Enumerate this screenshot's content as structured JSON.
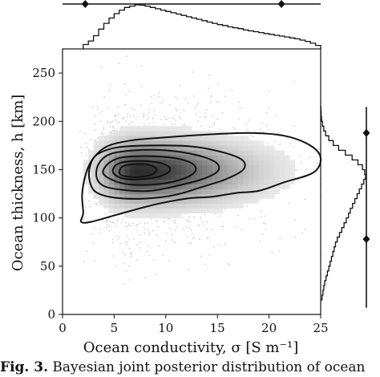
{
  "chart_data": {
    "type": "scatter",
    "subtype": "joint-distribution with 2D density, contours and marginal histograms",
    "xlabel": "Ocean conductivity, σ [S m⁻¹]",
    "ylabel": "Ocean thickness, h [km]",
    "xlim": [
      0,
      25
    ],
    "ylim": [
      0,
      275
    ],
    "xticks": [
      "0",
      "5",
      "10",
      "15",
      "20",
      "25"
    ],
    "yticks": [
      "0",
      "50",
      "100",
      "150",
      "200",
      "250"
    ],
    "grid": false,
    "density_peak": {
      "sigma": 7,
      "h": 148
    },
    "contours": [
      {
        "level": 1,
        "points": [
          [
            2.0,
            105
          ],
          [
            1.9,
            125
          ],
          [
            2.3,
            147
          ],
          [
            3.0,
            162
          ],
          [
            4.3,
            174
          ],
          [
            6.5,
            180
          ],
          [
            9.5,
            183
          ],
          [
            13.5,
            186
          ],
          [
            18.0,
            188
          ],
          [
            21.5,
            185
          ],
          [
            24.0,
            175
          ],
          [
            25.0,
            162
          ],
          [
            24.3,
            147
          ],
          [
            21.5,
            137
          ],
          [
            19.0,
            128
          ],
          [
            17.0,
            126
          ],
          [
            14.5,
            122
          ],
          [
            12.0,
            120
          ],
          [
            9.0,
            114
          ],
          [
            5.5,
            104
          ],
          [
            2.8,
            96
          ],
          [
            1.8,
            96
          ]
        ]
      },
      {
        "level": 2,
        "points": [
          [
            2.6,
            140
          ],
          [
            2.7,
            155
          ],
          [
            3.4,
            166
          ],
          [
            5.3,
            173
          ],
          [
            8.5,
            175
          ],
          [
            12.5,
            174
          ],
          [
            15.5,
            168
          ],
          [
            17.4,
            160
          ],
          [
            17.5,
            150
          ],
          [
            15.8,
            140
          ],
          [
            13.5,
            132
          ],
          [
            11.0,
            124
          ],
          [
            8.0,
            120
          ],
          [
            5.0,
            121
          ],
          [
            3.2,
            127
          ]
        ]
      },
      {
        "level": 3,
        "points": [
          [
            3.3,
            142
          ],
          [
            3.5,
            156
          ],
          [
            4.6,
            166
          ],
          [
            7.0,
            170
          ],
          [
            10.0,
            170
          ],
          [
            13.0,
            165
          ],
          [
            14.9,
            157
          ],
          [
            15.0,
            148
          ],
          [
            13.5,
            140
          ],
          [
            11.0,
            133
          ],
          [
            8.5,
            128
          ],
          [
            5.8,
            129
          ],
          [
            4.0,
            133
          ]
        ]
      },
      {
        "level": 4,
        "points": [
          [
            4.0,
            145
          ],
          [
            4.3,
            155
          ],
          [
            5.5,
            162
          ],
          [
            7.5,
            164
          ],
          [
            10.0,
            163
          ],
          [
            12.0,
            159
          ],
          [
            12.9,
            152
          ],
          [
            12.4,
            144
          ],
          [
            10.5,
            137
          ],
          [
            8.0,
            134
          ],
          [
            5.7,
            136
          ]
        ]
      },
      {
        "level": 5,
        "points": [
          [
            4.9,
            147
          ],
          [
            5.2,
            155
          ],
          [
            6.4,
            158.5
          ],
          [
            8.5,
            158.5
          ],
          [
            10.0,
            155
          ],
          [
            10.4,
            149
          ],
          [
            9.4,
            143
          ],
          [
            7.5,
            140
          ],
          [
            5.8,
            141
          ]
        ]
      },
      {
        "level": 6,
        "points": [
          [
            5.5,
            147
          ],
          [
            5.8,
            153
          ],
          [
            6.8,
            155.5
          ],
          [
            8.3,
            155
          ],
          [
            9.1,
            150.5
          ],
          [
            8.6,
            144.5
          ],
          [
            7.2,
            142.5
          ],
          [
            5.9,
            143.5
          ]
        ]
      }
    ],
    "marginal_x": {
      "bin_edges": [
        2.0,
        2.5,
        3.0,
        3.5,
        4.0,
        4.5,
        5.0,
        5.5,
        6.0,
        6.5,
        7.0,
        7.5,
        8.0,
        8.5,
        9.0,
        9.5,
        10.0,
        10.5,
        11.0,
        11.5,
        12.0,
        12.5,
        13.0,
        13.5,
        14.0,
        14.5,
        15.0,
        15.5,
        16.0,
        16.5,
        17.0,
        17.5,
        18.0,
        18.5,
        19.0,
        19.5,
        20.0,
        20.5,
        21.0,
        21.5,
        22.0,
        22.5,
        23.0,
        23.5,
        24.0,
        24.5,
        25.0
      ],
      "heights": [
        0.1,
        0.18,
        0.3,
        0.45,
        0.58,
        0.7,
        0.8,
        0.88,
        0.94,
        0.97,
        1.0,
        0.99,
        0.97,
        0.94,
        0.91,
        0.88,
        0.85,
        0.82,
        0.79,
        0.76,
        0.73,
        0.7,
        0.67,
        0.64,
        0.61,
        0.58,
        0.55,
        0.53,
        0.5,
        0.48,
        0.46,
        0.43,
        0.41,
        0.39,
        0.37,
        0.35,
        0.33,
        0.31,
        0.29,
        0.27,
        0.25,
        0.23,
        0.2,
        0.17,
        0.13,
        0.08
      ]
    },
    "marginal_y": {
      "bin_edges": [
        15,
        20,
        25,
        30,
        35,
        40,
        45,
        50,
        55,
        60,
        65,
        70,
        75,
        80,
        85,
        90,
        95,
        100,
        105,
        110,
        115,
        120,
        125,
        130,
        135,
        140,
        145,
        150,
        155,
        160,
        165,
        170,
        175,
        180,
        185,
        190,
        195,
        200,
        205,
        210,
        215
      ],
      "heights": [
        0.03,
        0.05,
        0.07,
        0.09,
        0.12,
        0.15,
        0.18,
        0.21,
        0.24,
        0.27,
        0.3,
        0.33,
        0.37,
        0.42,
        0.47,
        0.52,
        0.57,
        0.62,
        0.66,
        0.71,
        0.76,
        0.81,
        0.86,
        0.91,
        0.96,
        1.0,
        0.98,
        0.93,
        0.83,
        0.7,
        0.55,
        0.4,
        0.28,
        0.18,
        0.11,
        0.07,
        0.04,
        0.02,
        0.01,
        0.005
      ]
    },
    "interval_markers": {
      "sigma": [
        2.2,
        21.2
      ],
      "h": [
        78,
        188
      ]
    }
  },
  "caption": {
    "label": "Fig. 3.",
    "text": "Bayesian joint posterior distribution of ocean"
  }
}
